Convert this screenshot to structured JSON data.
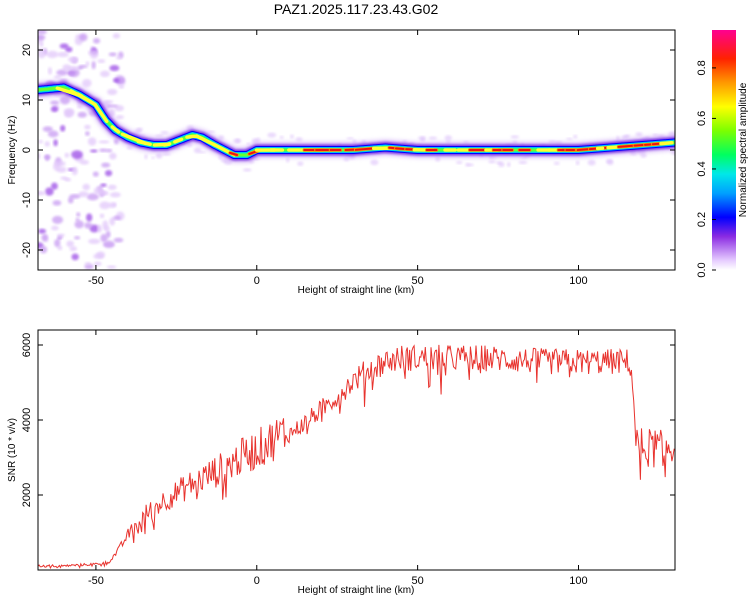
{
  "title": "PAZ1.2025.117.23.43.G02",
  "chart_data": [
    {
      "type": "heatmap",
      "xlabel": "Height of straight line (km)",
      "ylabel": "Frequency (Hz)",
      "xlim": [
        -68,
        130
      ],
      "ylim": [
        -24,
        24
      ],
      "xticks": [
        -50,
        0,
        50,
        100
      ],
      "yticks": [
        -20,
        -10,
        0,
        10,
        20
      ],
      "ridge": {
        "x": [
          -68,
          -60,
          -55,
          -50,
          -47,
          -44,
          -40,
          -36,
          -32,
          -28,
          -24,
          -20,
          -17,
          -13,
          -10,
          -7,
          -3,
          0,
          5,
          10,
          20,
          30,
          40,
          50,
          60,
          70,
          80,
          90,
          100,
          110,
          120,
          130
        ],
        "y": [
          12,
          12.5,
          11,
          9,
          6,
          4,
          2.5,
          1.5,
          1,
          1,
          2,
          3,
          2.5,
          1,
          0,
          -1,
          -1,
          0,
          0,
          0,
          0,
          0,
          0.5,
          0,
          0,
          0,
          0,
          0,
          0,
          0.5,
          1,
          1.5
        ]
      },
      "noise_region_x": [
        -68,
        -42
      ],
      "colorbar": {
        "label": "Normalized spectral amplitude",
        "range": [
          0,
          0.95
        ],
        "ticks": [
          "0.0",
          "0.2",
          "0.4",
          "0.6",
          "0.8"
        ]
      }
    },
    {
      "type": "line",
      "xlabel": "Height of straight line (km)",
      "ylabel": "SNR (10 * v/v)",
      "xlim": [
        -68,
        130
      ],
      "ylim": [
        0,
        6400
      ],
      "xticks": [
        -50,
        0,
        50,
        100
      ],
      "yticks": [
        2000,
        4000,
        6000
      ],
      "color": "#e8332e",
      "series": [
        {
          "x": [
            -68,
            -60,
            -50,
            -46,
            -43,
            -40,
            -35,
            -30,
            -25,
            -20,
            -15,
            -10,
            -5,
            0,
            5,
            10,
            15,
            20,
            25,
            30,
            35,
            40,
            45,
            50,
            60,
            70,
            80,
            90,
            100,
            110,
            116,
            117,
            118,
            120,
            125,
            130
          ],
          "y": [
            100,
            100,
            150,
            200,
            500,
            900,
            1400,
            1700,
            1950,
            2200,
            2400,
            2600,
            2850,
            3050,
            3300,
            3550,
            3850,
            4200,
            4550,
            4950,
            5250,
            5450,
            5550,
            5550,
            5550,
            5550,
            5500,
            5450,
            5450,
            5450,
            5450,
            4700,
            3150,
            3100,
            3100,
            3100
          ]
        }
      ]
    }
  ]
}
